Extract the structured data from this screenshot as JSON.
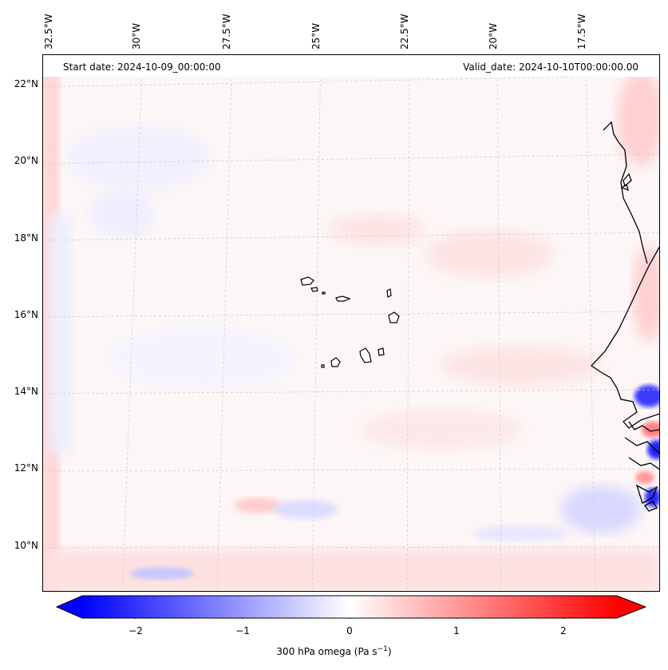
{
  "map": {
    "start_date": "Start date: 2024-10-09_00:00:00",
    "valid_date": "Valid_date: 2024-10-10T00:00:00.00",
    "lon_labels": [
      "32.5°W",
      "30°W",
      "27.5°W",
      "25°W",
      "22.5°W",
      "20°W",
      "17.5°W"
    ],
    "lat_labels": [
      "22°N",
      "20°N",
      "18°N",
      "16°N",
      "14°N",
      "12°N",
      "10°N"
    ],
    "features": {
      "islands": "Cape Verde islands",
      "coast": "West African coastline"
    }
  },
  "colorbar": {
    "ticks": [
      "−2",
      "−1",
      "0",
      "1",
      "2"
    ],
    "label": "300 hPa omega (Pa s",
    "label_sup": "−1",
    "label_end": ")",
    "range": [
      -2.7,
      2.7
    ],
    "colors": {
      "min": "#0000ff",
      "mid": "#ffffff",
      "max": "#ff0000"
    }
  }
}
